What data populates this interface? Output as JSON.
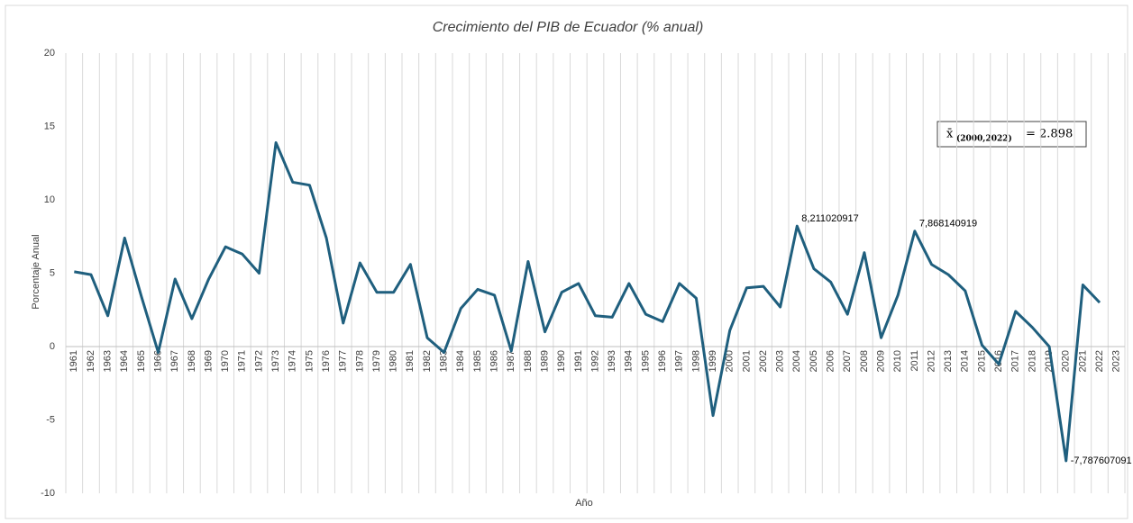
{
  "chart_data": {
    "type": "line",
    "title": "Crecimiento del PIB de Ecuador (% anual)",
    "x_label": "Año",
    "y_label": "Porcentaje Anual",
    "categories": [
      "1961",
      "1962",
      "1963",
      "1964",
      "1965",
      "1966",
      "1967",
      "1968",
      "1969",
      "1970",
      "1971",
      "1972",
      "1973",
      "1974",
      "1975",
      "1976",
      "1977",
      "1978",
      "1979",
      "1980",
      "1981",
      "1982",
      "1983",
      "1984",
      "1985",
      "1986",
      "1987",
      "1988",
      "1989",
      "1990",
      "1991",
      "1992",
      "1993",
      "1994",
      "1995",
      "1996",
      "1997",
      "1998",
      "1999",
      "2000",
      "2001",
      "2002",
      "2003",
      "2004",
      "2005",
      "2006",
      "2007",
      "2008",
      "2009",
      "2010",
      "2011",
      "2012",
      "2013",
      "2014",
      "2015",
      "2016",
      "2017",
      "2018",
      "2019",
      "2020",
      "2021",
      "2022",
      "2023"
    ],
    "series": [
      {
        "name": "Crecimiento del PIB",
        "color": "#1f5f7e",
        "values": [
          5.1,
          4.9,
          2.1,
          7.4,
          3.4,
          -0.4,
          4.6,
          1.9,
          4.6,
          6.8,
          6.3,
          5.0,
          13.9,
          11.2,
          11.0,
          7.4,
          1.6,
          5.7,
          3.7,
          3.7,
          5.6,
          0.6,
          -0.4,
          2.6,
          3.9,
          3.5,
          -0.3,
          5.8,
          1.0,
          3.7,
          4.3,
          2.1,
          2.0,
          4.3,
          2.2,
          1.7,
          4.3,
          3.3,
          -4.7,
          1.1,
          4.0,
          4.1,
          2.7,
          8.211020917,
          5.3,
          4.4,
          2.2,
          6.4,
          0.6,
          3.5,
          7.868140919,
          5.6,
          4.9,
          3.8,
          0.1,
          -1.2,
          2.4,
          1.3,
          0.0,
          -7.787607091,
          4.2,
          3.0,
          null
        ],
        "value_labels": [
          null,
          null,
          null,
          null,
          null,
          null,
          null,
          null,
          null,
          null,
          null,
          null,
          null,
          null,
          null,
          null,
          null,
          null,
          null,
          null,
          null,
          null,
          null,
          null,
          null,
          null,
          null,
          null,
          null,
          null,
          null,
          null,
          null,
          null,
          null,
          null,
          null,
          null,
          null,
          null,
          null,
          null,
          null,
          "8,211020917",
          null,
          null,
          null,
          null,
          null,
          null,
          "7,868140919",
          null,
          null,
          null,
          null,
          null,
          null,
          null,
          null,
          "-7,787607091",
          null,
          null,
          null
        ]
      }
    ],
    "ylim": [
      -10,
      20
    ],
    "yticks": [
      -10,
      -5,
      0,
      5,
      10,
      15,
      20
    ],
    "grid": "x",
    "annotation": {
      "symbol": "x̄",
      "subscript": "(2000,2022)",
      "text": "= 2.898"
    }
  }
}
